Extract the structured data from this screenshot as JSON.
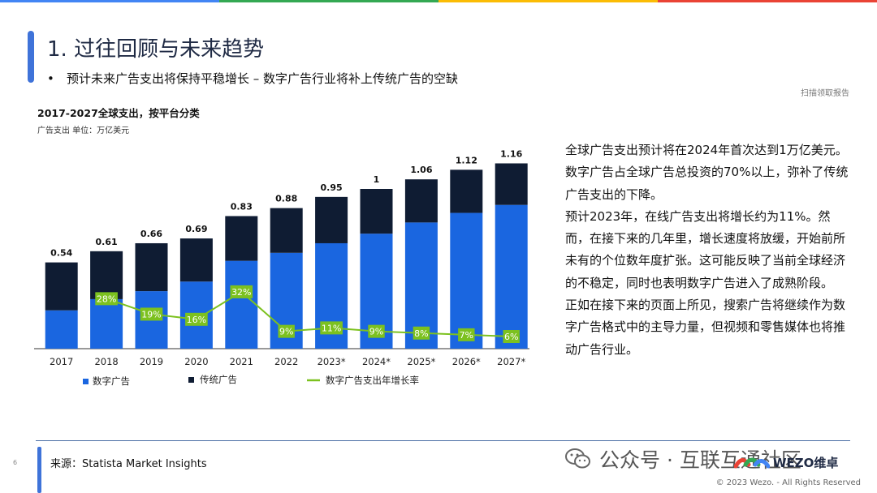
{
  "header": {
    "title": "1. 过往回顾与未来趋势",
    "bullet": "•",
    "subtitle": "预计未来广告支出将保持平稳增长 – 数字广告行业将补上传统广告的空缺",
    "scan_note": "扫描领取报告",
    "bar_colors": [
      "#4285f4",
      "#34a853",
      "#fbbc05",
      "#ea4335"
    ]
  },
  "chart_data": {
    "type": "bar",
    "title": "2017-2027全球支出，按平台分类",
    "unit_label": "广告支出 单位：万亿美元",
    "categories": [
      "2017",
      "2018",
      "2019",
      "2020",
      "2021",
      "2022",
      "2023*",
      "2024*",
      "2025*",
      "2026*",
      "2027*"
    ],
    "totals": [
      0.54,
      0.61,
      0.66,
      0.69,
      0.83,
      0.88,
      0.95,
      1,
      1.06,
      1.12,
      1.16
    ],
    "series": [
      {
        "name": "数字广告",
        "color": "#1a66e0",
        "values": [
          0.24,
          0.31,
          0.36,
          0.42,
          0.55,
          0.6,
          0.66,
          0.72,
          0.79,
          0.85,
          0.9
        ]
      },
      {
        "name": "传统广告",
        "color": "#0f1c33",
        "values": [
          0.3,
          0.3,
          0.3,
          0.27,
          0.28,
          0.28,
          0.29,
          0.28,
          0.27,
          0.27,
          0.26
        ]
      }
    ],
    "growth": {
      "name": "数字广告支出年增长率",
      "color": "#7cc11f",
      "categories": [
        "2018",
        "2019",
        "2020",
        "2021",
        "2022",
        "2023*",
        "2024*",
        "2025*",
        "2026*",
        "2027*"
      ],
      "values": [
        28,
        19,
        16,
        32,
        9,
        11,
        9,
        8,
        7,
        6
      ],
      "labels": [
        "28%",
        "19%",
        "16%",
        "32%",
        "9%",
        "11%",
        "9%",
        "8%",
        "7%",
        "6%"
      ]
    },
    "ylim": [
      0,
      1.2
    ],
    "grid": false,
    "legend_position": "bottom"
  },
  "right_text": [
    "全球广告支出预计将在2024年首次达到1万亿美元。数字广告占全球广告总投资的70%以上，弥补了传统广告支出的下降。",
    "预计2023年，在线广告支出将增长约为11%。然而，在接下来的几年里，增长速度将放缓，开始前所未有的个位数年度扩张。这可能反映了当前全球经济的不稳定，同时也表明数字广告进入了成熟阶段。",
    "正如在接下来的页面上所见，搜索广告将继续作为数字广告格式中的主导力量，但视频和零售媒体也将推动广告行业。"
  ],
  "footer": {
    "page_number": "6",
    "source": "来源：Statista Market Insights",
    "wechat": "公众号 · 互联互通社区",
    "brand": "WEZO维卓",
    "copyright": "© 2023 Wezo. - All Rights Reserved"
  }
}
